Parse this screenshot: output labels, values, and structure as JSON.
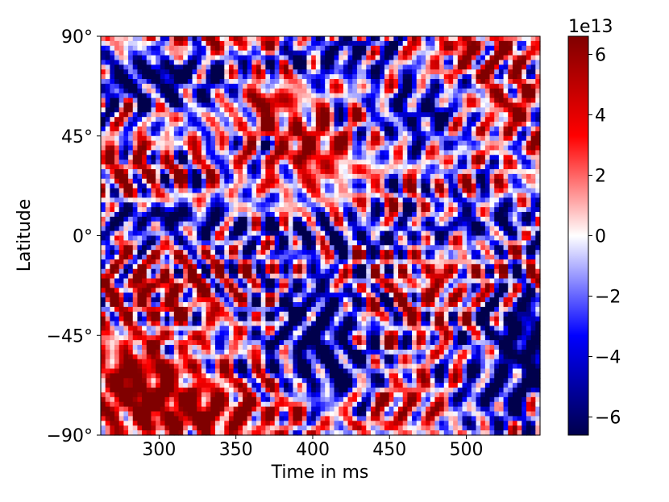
{
  "chart_data": {
    "type": "heatmap",
    "xlabel": "Time in ms",
    "ylabel": "Latitude",
    "xlim": [
      262,
      548
    ],
    "ylim": [
      -90,
      90
    ],
    "x_ticks": [
      {
        "value": 300,
        "label": "300"
      },
      {
        "value": 350,
        "label": "350"
      },
      {
        "value": 400,
        "label": "400"
      },
      {
        "value": 450,
        "label": "450"
      },
      {
        "value": 500,
        "label": "500"
      }
    ],
    "y_ticks": [
      {
        "value": 90,
        "label": "90°"
      },
      {
        "value": 45,
        "label": "45°"
      },
      {
        "value": 0,
        "label": "0°"
      },
      {
        "value": -45,
        "label": "−45°"
      },
      {
        "value": -90,
        "label": "−90°"
      }
    ],
    "colormap": "seismic",
    "colorbar": {
      "range": [
        -6.6,
        6.6
      ],
      "offset_label": "1e13",
      "ticks": [
        {
          "value": 6,
          "label": "6"
        },
        {
          "value": 4,
          "label": "4"
        },
        {
          "value": 2,
          "label": "2"
        },
        {
          "value": 0,
          "label": "0"
        },
        {
          "value": -2,
          "label": "−2"
        },
        {
          "value": -4,
          "label": "−4"
        },
        {
          "value": -6,
          "label": "−6"
        }
      ]
    },
    "field_pattern": {
      "grid_cols": 96,
      "grid_rows": 84,
      "features": [
        {
          "x": 300,
          "lat": 72,
          "sx": 35,
          "sy": 10,
          "v": -6
        },
        {
          "x": 335,
          "lat": 88,
          "sx": 40,
          "sy": 5,
          "v": 5
        },
        {
          "x": 420,
          "lat": 82,
          "sx": 45,
          "sy": 7,
          "v": -5
        },
        {
          "x": 500,
          "lat": 82,
          "sx": 35,
          "sy": 6,
          "v": 5
        },
        {
          "x": 370,
          "lat": 60,
          "sx": 12,
          "sy": 10,
          "v": 5
        },
        {
          "x": 400,
          "lat": 40,
          "sx": 15,
          "sy": 10,
          "v": 5.5
        },
        {
          "x": 470,
          "lat": 55,
          "sx": 18,
          "sy": 10,
          "v": -5
        },
        {
          "x": 530,
          "lat": 60,
          "sx": 15,
          "sy": 10,
          "v": 4
        },
        {
          "x": 280,
          "lat": 30,
          "sx": 20,
          "sy": 8,
          "v": 3
        },
        {
          "x": 300,
          "lat": 8,
          "sx": 40,
          "sy": 5,
          "v": -5
        },
        {
          "x": 420,
          "lat": 0,
          "sx": 60,
          "sy": 5,
          "v": -4
        },
        {
          "x": 520,
          "lat": 8,
          "sx": 25,
          "sy": 5,
          "v": -4
        },
        {
          "x": 300,
          "lat": -25,
          "sx": 30,
          "sy": 10,
          "v": 4
        },
        {
          "x": 400,
          "lat": -40,
          "sx": 20,
          "sy": 15,
          "v": -6.5
        },
        {
          "x": 480,
          "lat": -25,
          "sx": 20,
          "sy": 12,
          "v": 3
        },
        {
          "x": 520,
          "lat": -40,
          "sx": 15,
          "sy": 10,
          "v": -4
        },
        {
          "x": 285,
          "lat": -65,
          "sx": 25,
          "sy": 12,
          "v": 6.5
        },
        {
          "x": 330,
          "lat": -80,
          "sx": 40,
          "sy": 8,
          "v": 6.5
        },
        {
          "x": 420,
          "lat": -65,
          "sx": 20,
          "sy": 10,
          "v": -5
        },
        {
          "x": 460,
          "lat": -75,
          "sx": 25,
          "sy": 8,
          "v": 4
        },
        {
          "x": 520,
          "lat": -72,
          "sx": 25,
          "sy": 10,
          "v": -5
        },
        {
          "x": 540,
          "lat": -50,
          "sx": 10,
          "sy": 15,
          "v": -6
        }
      ]
    }
  }
}
